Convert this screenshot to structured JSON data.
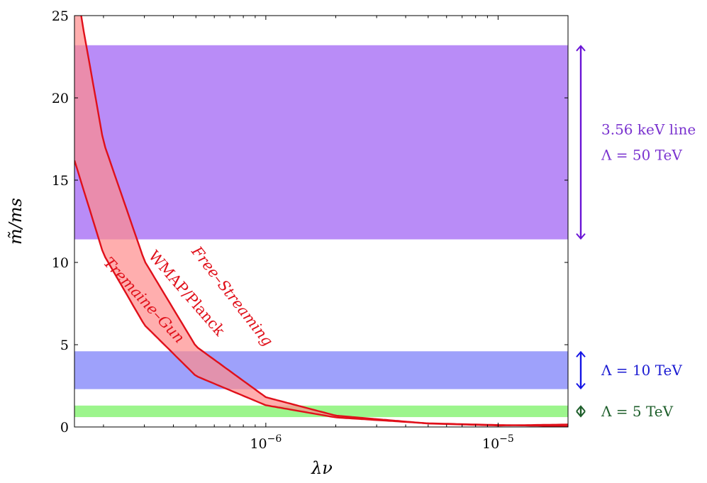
{
  "chart_data": {
    "type": "area",
    "xscale": "log",
    "xlim": [
      1.5e-07,
      2e-05
    ],
    "ylim": [
      0,
      25
    ],
    "xlabel": "λν",
    "ylabel": "m̃/ms",
    "y_ticks": [
      0,
      5,
      10,
      15,
      20,
      25
    ],
    "x_ticks": [
      {
        "value": 1e-06,
        "base": "10",
        "exp": "−6"
      },
      {
        "value": 1e-05,
        "base": "10",
        "exp": "−5"
      }
    ],
    "grid": false,
    "series": [
      {
        "name": "Free–Streaming",
        "color": "#e0101a",
        "x": [
          1.5e-07,
          1.6e-07,
          2e-07,
          3e-07,
          5e-07,
          1e-06,
          2e-06,
          5e-06,
          1e-05,
          2e-05
        ],
        "y": [
          29.0,
          25.0,
          17.3,
          10.1,
          4.9,
          1.81,
          0.69,
          0.21,
          0.09,
          0.15
        ]
      },
      {
        "name": "Tremaine–Gun",
        "color": "#e0101a",
        "x": [
          1.5e-07,
          2e-07,
          3e-07,
          5e-07,
          1e-06,
          2e-06,
          5e-06,
          1e-05,
          2e-05
        ],
        "y": [
          16.2,
          10.5,
          6.2,
          3.1,
          1.32,
          0.58,
          0.22,
          0.12,
          0.05
        ]
      }
    ],
    "shaded_region": {
      "label": "WMAP/Planck",
      "color": "#ff8c8c"
    },
    "bands": [
      {
        "label_lines": [
          "3.56 keV line",
          "Λ = 50 TeV"
        ],
        "y_range": [
          11.4,
          23.2
        ],
        "color": "#b98cf7",
        "arrow_color": "#6a14d6",
        "text_color": "#7a33cf"
      },
      {
        "label_lines": [
          "Λ = 10 TeV"
        ],
        "y_range": [
          2.3,
          4.6
        ],
        "color": "#9ea1fb",
        "arrow_color": "#1414e6",
        "text_color": "#1a1ad2"
      },
      {
        "label_lines": [
          "Λ = 5 TeV"
        ],
        "y_range": [
          0.6,
          1.3
        ],
        "color": "#9cf58c",
        "arrow_color": "#1d5e2a",
        "text_color": "#1d5e2a"
      }
    ]
  }
}
